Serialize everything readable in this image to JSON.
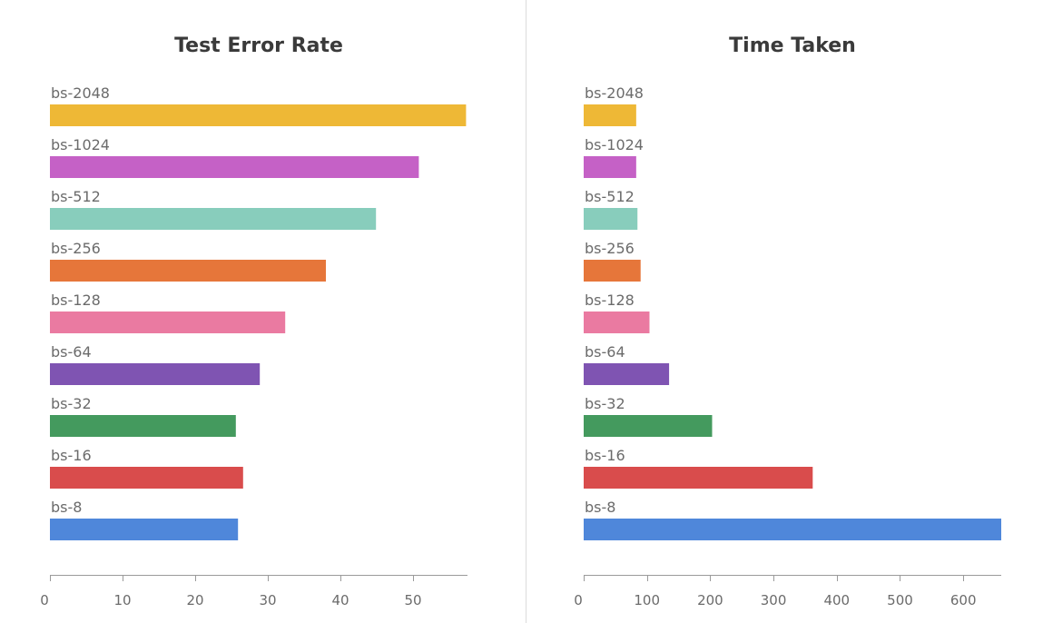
{
  "chart_data": [
    {
      "type": "bar",
      "orientation": "horizontal",
      "title": "Test Error Rate",
      "categories": [
        "bs-2048",
        "bs-1024",
        "bs-512",
        "bs-256",
        "bs-128",
        "bs-64",
        "bs-32",
        "bs-16",
        "bs-8"
      ],
      "values": [
        57.3,
        50.8,
        44.9,
        38.0,
        32.4,
        28.9,
        25.6,
        26.6,
        25.9
      ],
      "colors": [
        "#eeb836",
        "#c561c6",
        "#88cdbc",
        "#e6763a",
        "#ea7aa1",
        "#7f54b2",
        "#449a5e",
        "#d94c4c",
        "#4f87da"
      ],
      "xlim": [
        0,
        57.5
      ],
      "xticks": [
        0,
        10,
        20,
        30,
        40,
        50
      ],
      "xlabel": "",
      "ylabel": "",
      "grid": false,
      "legend": "none"
    },
    {
      "type": "bar",
      "orientation": "horizontal",
      "title": "Time Taken",
      "categories": [
        "bs-2048",
        "bs-1024",
        "bs-512",
        "bs-256",
        "bs-128",
        "bs-64",
        "bs-32",
        "bs-16",
        "bs-8"
      ],
      "values": [
        83,
        83,
        85,
        90,
        104,
        135,
        203,
        362,
        660
      ],
      "colors": [
        "#eeb836",
        "#c561c6",
        "#88cdbc",
        "#e6763a",
        "#ea7aa1",
        "#7f54b2",
        "#449a5e",
        "#d94c4c",
        "#4f87da"
      ],
      "xlim": [
        0,
        660
      ],
      "xticks": [
        0,
        100,
        200,
        300,
        400,
        500,
        600
      ],
      "xlabel": "",
      "ylabel": "",
      "grid": false,
      "legend": "none"
    }
  ]
}
